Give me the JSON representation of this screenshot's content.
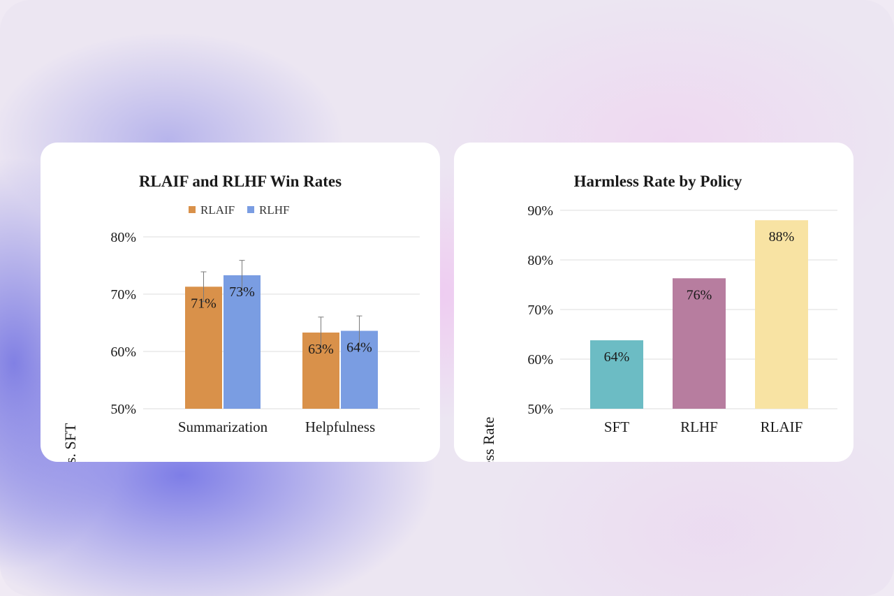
{
  "chart_data": [
    {
      "type": "bar",
      "title": "RLAIF and RLHF Win Rates",
      "xlabel": "",
      "ylabel": "Win Rate vs. SFT",
      "ylim": [
        50,
        80
      ],
      "yticks": [
        "50%",
        "60%",
        "70%",
        "80%"
      ],
      "grid": true,
      "legend_position": "top",
      "categories": [
        "Summarization",
        "Helpfulness"
      ],
      "series": [
        {
          "name": "RLAIF",
          "color": "#d9914a",
          "values": [
            71.3,
            63.3
          ],
          "error": [
            2.6,
            2.7
          ],
          "labels": [
            "71%",
            "63%"
          ]
        },
        {
          "name": "RLHF",
          "color": "#7a9de2",
          "values": [
            73.3,
            63.6
          ],
          "error": [
            2.6,
            2.6
          ],
          "labels": [
            "73%",
            "64%"
          ]
        }
      ]
    },
    {
      "type": "bar",
      "title": "Harmless Rate by Policy",
      "xlabel": "",
      "ylabel": "Harmless Rate",
      "ylim": [
        50,
        90
      ],
      "yticks": [
        "50%",
        "60%",
        "70%",
        "80%",
        "90%"
      ],
      "grid": true,
      "categories": [
        "SFT",
        "RLHF",
        "RLAIF"
      ],
      "values": [
        63.8,
        76.3,
        88.0
      ],
      "labels": [
        "64%",
        "76%",
        "88%"
      ],
      "colors": [
        "#6cbcc4",
        "#b77d9f",
        "#f8e3a3"
      ]
    }
  ]
}
